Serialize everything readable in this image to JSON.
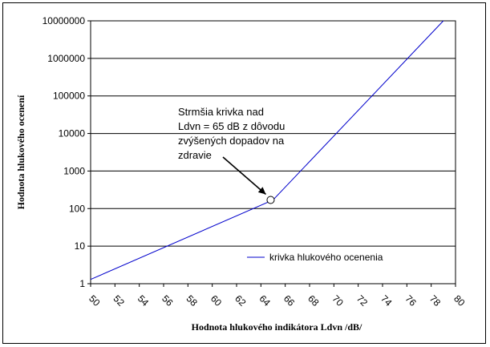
{
  "chart_data": {
    "type": "line",
    "xlabel": "Hodnota hlukového indikátora Ldvn /dB/",
    "ylabel": "Hodnota hlukového ocenení",
    "xlim": [
      50,
      80
    ],
    "ylim": [
      1,
      10000000
    ],
    "yscale": "log",
    "grid": "horizontal",
    "x_ticks": [
      "50",
      "52",
      "54",
      "56",
      "58",
      "60",
      "62",
      "64",
      "66",
      "68",
      "70",
      "72",
      "74",
      "76",
      "78",
      "80"
    ],
    "y_ticks": [
      "1",
      "10",
      "100",
      "1000",
      "10000",
      "100000",
      "1000000",
      "10000000"
    ],
    "series": [
      {
        "name": "krivka hlukového ocenenia",
        "color": "#0000cc",
        "x": [
          50,
          65,
          79
        ],
        "y": [
          1.3,
          170,
          10000000
        ]
      }
    ],
    "annotation": {
      "lines": [
        "Strmšia krivka nad",
        "Ldvn = 65 dB z dôvodu",
        "zvýšených dopadov na",
        "zdravie"
      ],
      "point": {
        "x": 64.8,
        "y": 170
      }
    },
    "legend": {
      "position": "bottom-right",
      "label": "krivka hlukového ocenenia"
    }
  }
}
